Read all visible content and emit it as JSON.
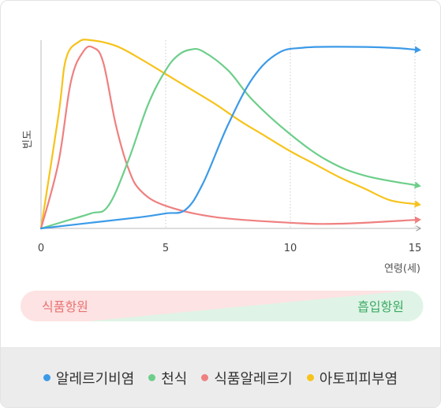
{
  "chart_data": {
    "type": "line",
    "ylabel": "빈도",
    "xlabel": "연령(세)",
    "xlim": [
      0,
      15
    ],
    "ylim": [
      0,
      100
    ],
    "x_ticks": [
      "0",
      "5",
      "10",
      "15"
    ],
    "grid": "vertical dotted at 5, 10, 15",
    "series": [
      {
        "name": "알레르기비염",
        "color": "#3b9ae8",
        "x": [
          0,
          2,
          4,
          5,
          5.8,
          6.5,
          7.5,
          8.5,
          9.5,
          10.5,
          12,
          14,
          15
        ],
        "y": [
          0,
          3,
          6,
          8,
          10,
          24,
          55,
          80,
          93,
          96,
          96.5,
          96,
          95
        ]
      },
      {
        "name": "천식",
        "color": "#6dce8a",
        "x": [
          0,
          1,
          2,
          2.7,
          3.5,
          4.3,
          5,
          5.5,
          6,
          6.5,
          7.5,
          8.5,
          10,
          11.5,
          13,
          15
        ],
        "y": [
          0,
          4,
          8,
          12,
          36,
          66,
          84,
          92,
          95,
          94,
          84,
          68,
          50,
          36,
          28,
          23
        ]
      },
      {
        "name": "식품알레르기",
        "color": "#ef8080",
        "x": [
          0,
          0.7,
          1.2,
          1.7,
          2.1,
          2.5,
          3,
          3.5,
          4,
          5,
          7,
          10,
          12,
          15
        ],
        "y": [
          0,
          35,
          78,
          94,
          96,
          88,
          55,
          32,
          20,
          12,
          6,
          3,
          2.5,
          4.5
        ]
      },
      {
        "name": "아토피피부염",
        "color": "#f7c31a",
        "x": [
          0,
          0.7,
          1,
          1.5,
          2,
          3,
          4,
          5,
          6,
          7,
          8,
          9,
          10,
          11,
          12,
          13,
          14,
          15
        ],
        "y": [
          0,
          60,
          90,
          99,
          100,
          97,
          90,
          82,
          74,
          66,
          57,
          49,
          41,
          34,
          27,
          21,
          15,
          13
        ]
      }
    ],
    "band": {
      "left_label": "식품항원",
      "right_label": "흡입항원"
    }
  }
}
